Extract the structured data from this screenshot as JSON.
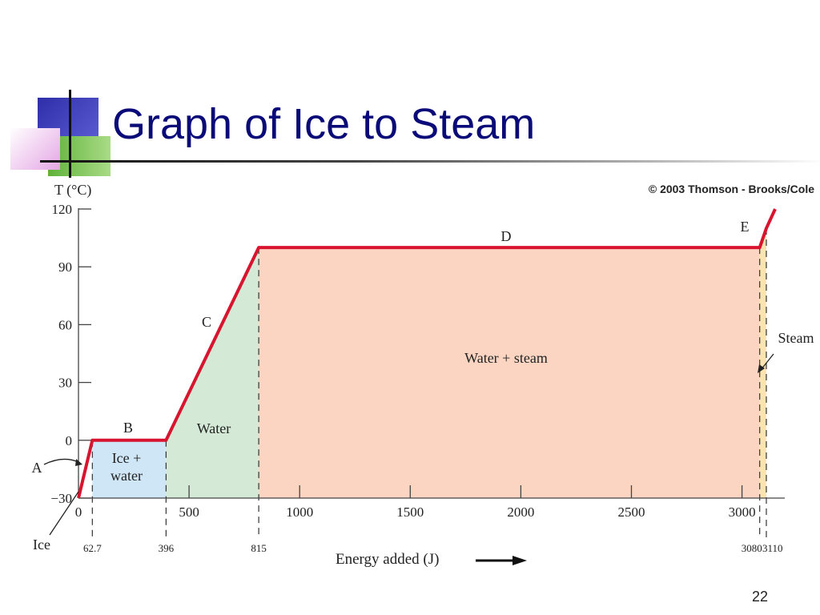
{
  "slide": {
    "title": "Graph of Ice to Steam",
    "page_number": "22"
  },
  "chart_data": {
    "type": "line",
    "copyright": "© 2003 Thomson - Brooks/Cole",
    "ylabel": "T (°C)",
    "xlabel": "Energy added (J)",
    "xlim": [
      0,
      3200
    ],
    "ylim": [
      -30,
      120
    ],
    "y_ticks": [
      -30,
      0,
      30,
      60,
      90,
      120
    ],
    "x_ticks": [
      0,
      500,
      1000,
      1500,
      2000,
      2500,
      3000
    ],
    "y_tick_labels": [
      "−30",
      "0",
      "30",
      "60",
      "90",
      "120"
    ],
    "x_tick_labels": [
      "0",
      "500",
      "1000",
      "1500",
      "2000",
      "2500",
      "3000"
    ],
    "series": [
      {
        "x": [
          0,
          62.7,
          396,
          815,
          3080,
          3110,
          3150
        ],
        "y": [
          -30,
          0,
          0,
          100,
          100,
          110,
          120
        ]
      }
    ],
    "boundaries": [
      {
        "x": 62.7,
        "label": "62.7"
      },
      {
        "x": 396,
        "label": "396"
      },
      {
        "x": 815,
        "label": "815"
      },
      {
        "x": 3080,
        "label": "3080"
      },
      {
        "x": 3110,
        "label": "3110"
      }
    ],
    "regions": [
      {
        "x0": 62.7,
        "x1": 396,
        "color": "#cfe6f7",
        "label": "Ice +\nwater"
      },
      {
        "x0": 396,
        "x1": 815,
        "color": "#d4ead6",
        "label": "Water"
      },
      {
        "x0": 815,
        "x1": 3080,
        "color": "#fbd5c2",
        "label": "Water + steam"
      },
      {
        "x0": 3080,
        "x1": 3110,
        "color": "#fbe4b0",
        "label": ""
      }
    ],
    "segment_labels": [
      "A",
      "B",
      "C",
      "D",
      "E"
    ],
    "annotations": [
      "Ice",
      "Steam"
    ],
    "line_color": "#d9142e"
  }
}
